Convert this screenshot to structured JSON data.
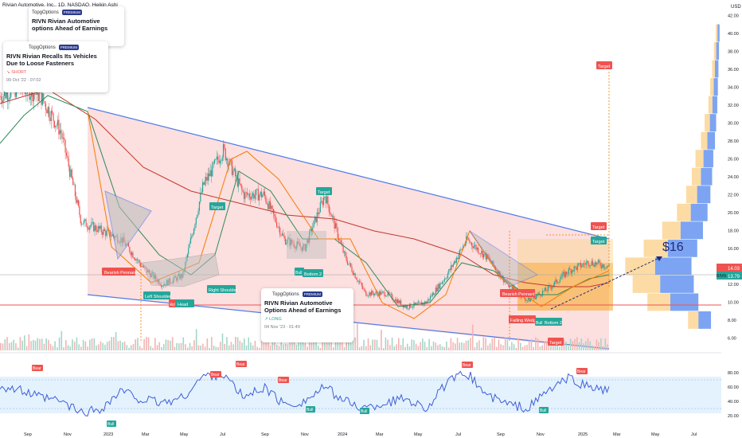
{
  "header": {
    "symbol_line": "Rivian Automotive, Inc., 1D, NASDAQ, Heikin Ashi",
    "currency": "USD"
  },
  "price_axis": {
    "ticks": [
      "42.00",
      "40.00",
      "38.00",
      "36.00",
      "34.00",
      "32.00",
      "30.00",
      "28.00",
      "26.00",
      "24.00",
      "22.00",
      "20.00",
      "18.00",
      "16.00",
      "14.00",
      "12.00",
      "10.00",
      "8.00",
      "6.00"
    ],
    "last_price": "14.03",
    "rivn_label": "RIVN",
    "rivn_value": "13.79"
  },
  "rsi_axis": {
    "ticks": [
      "80.00",
      "60.00",
      "40.00",
      "20.00"
    ]
  },
  "time_axis": {
    "ticks": [
      "Sep",
      "Nov",
      "2023",
      "Mar",
      "May",
      "Jul",
      "Sep",
      "Nov",
      "2024",
      "Mar",
      "May",
      "Jul",
      "Sep",
      "Nov",
      "2025",
      "Mar",
      "May",
      "Jul"
    ]
  },
  "news": [
    {
      "brand": "TopgOptions",
      "badge": "PREMIUM",
      "title": "RIVN Rivian Automotive options Ahead of Earnings",
      "side": "",
      "meta": ""
    },
    {
      "brand": "TopgOptions",
      "badge": "PREMIUM",
      "title": "RIVN  Rivian Recalls Its Vehicles Due to Loose Fasteners",
      "side": "↘ SHORT",
      "meta": "09 Oct '22 · 07:02"
    },
    {
      "brand": "TopgOptions",
      "badge": "PREMIUM",
      "title": "RIVN Rivian Automotive Options Ahead of Earnings",
      "side": "↗ LONG",
      "meta": "04 Nov '23 · 01:49"
    }
  ],
  "annotations": {
    "bearish_pennant_1": "Bearish Pennant",
    "left_shoulder": "Left Shoulder",
    "right_shoulder": "Right Shoulder",
    "falling_wedge_1": "Falling Wedge",
    "head": "Head",
    "target_1": "Target",
    "target_2": "Target",
    "bull_1": "Bull",
    "bottom_2a": "Bottom 2",
    "bearish_pennant_2": "Bearish Pennant",
    "falling_wedge_2": "Falling Wedge",
    "bull_2": "Bull",
    "bottom_2b": "Bottom 2",
    "target_top": "Target",
    "target_red": "Target",
    "target_green": "Target",
    "target_bottom": "Target",
    "price_target": "$16"
  },
  "rsi_labels": {
    "bear": "Bear",
    "bull": "Bull"
  },
  "colors": {
    "up": "#26a69a",
    "down": "#ef5350",
    "channel_fill": "#fbd9d9",
    "channel_line": "#4e79e8",
    "ma_green": "#2e8b57",
    "ma_red": "#c0392b",
    "ma_orange": "#f57c00",
    "rsi_line": "#3f5ed6",
    "rsi_band": "#e3f2fd"
  },
  "chart_data": {
    "type": "candlestick",
    "chart_style": "Heikin Ashi",
    "symbol": "RIVN",
    "interval": "1D",
    "y_axis": {
      "min": 5,
      "max": 43,
      "unit": "USD"
    },
    "x_range": [
      "2022-08",
      "2025-08"
    ],
    "series_close_monthly": {
      "x": [
        "2022-08",
        "2022-09",
        "2022-10",
        "2022-11",
        "2022-12",
        "2023-01",
        "2023-02",
        "2023-03",
        "2023-04",
        "2023-05",
        "2023-06",
        "2023-07",
        "2023-08",
        "2023-09",
        "2023-10",
        "2023-11",
        "2023-12",
        "2024-01",
        "2024-02",
        "2024-03",
        "2024-04",
        "2024-05",
        "2024-06",
        "2024-07",
        "2024-08",
        "2024-09",
        "2024-10",
        "2024-11",
        "2024-12",
        "2025-01",
        "2025-02"
      ],
      "close": [
        33,
        34,
        33,
        29,
        19,
        18,
        17,
        14,
        12,
        13,
        23,
        27,
        22,
        22,
        17,
        16,
        22,
        15,
        11,
        11,
        9.5,
        10,
        13,
        17,
        15,
        12,
        10.2,
        11.5,
        13.5,
        14.5,
        14.03
      ]
    },
    "last_price": 14.03,
    "rsi": {
      "range": [
        0,
        100
      ],
      "band": [
        30,
        70
      ],
      "values_monthly": [
        62,
        55,
        45,
        40,
        24,
        30,
        55,
        42,
        38,
        45,
        75,
        78,
        45,
        60,
        35,
        40,
        60,
        40,
        30,
        38,
        45,
        30,
        65,
        80,
        48,
        36,
        30,
        55,
        72,
        60,
        55
      ]
    }
  }
}
